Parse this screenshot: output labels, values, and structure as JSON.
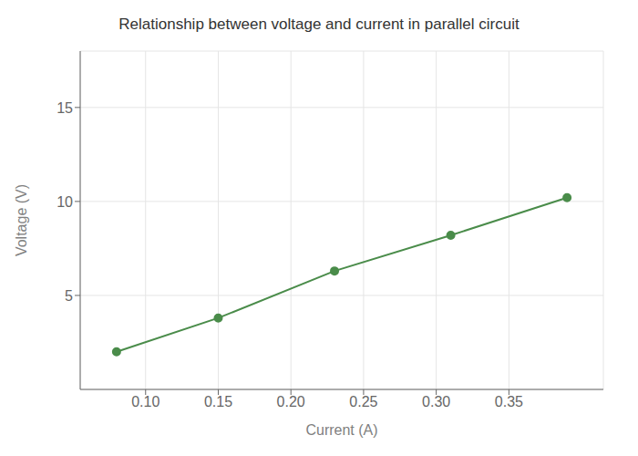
{
  "chart_data": {
    "type": "line",
    "title": "Relationship between voltage and current in parallel circuit",
    "xlabel": "Current (A)",
    "ylabel": "Voltage (V)",
    "x": [
      0.08,
      0.15,
      0.23,
      0.31,
      0.39
    ],
    "values": [
      2.0,
      3.8,
      6.3,
      8.2,
      10.2
    ],
    "color": "#4a8c4a",
    "marker": "circle",
    "xlim": [
      0.055,
      0.415
    ],
    "ylim": [
      0,
      18
    ],
    "xticks": [
      {
        "value": 0.1,
        "label": "0.10"
      },
      0.15,
      {
        "value": 0.2,
        "label": "0.20"
      },
      0.25,
      {
        "value": 0.3,
        "label": "0.30"
      },
      0.35
    ],
    "yticks": [
      5,
      10,
      15
    ],
    "grid": true
  }
}
